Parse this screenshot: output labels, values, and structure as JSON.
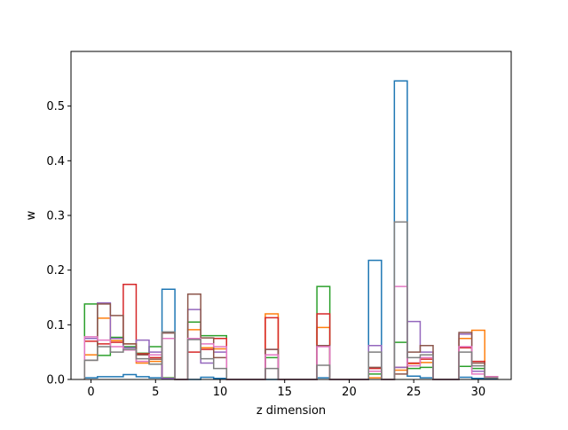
{
  "chart_data": {
    "type": "step-histogram",
    "xlabel": "z dimension",
    "ylabel": "w",
    "xlim": [
      -1.55,
      32.55
    ],
    "ylim": [
      0,
      0.6
    ],
    "xticks": [
      0,
      5,
      10,
      15,
      20,
      25,
      30
    ],
    "xtick_labels": [
      "0",
      "5",
      "10",
      "15",
      "20",
      "25",
      "30"
    ],
    "yticks": [
      0.0,
      0.1,
      0.2,
      0.3,
      0.4,
      0.5
    ],
    "ytick_labels": [
      "0.0",
      "0.1",
      "0.2",
      "0.3",
      "0.4",
      "0.5"
    ],
    "x": [
      0,
      1,
      2,
      3,
      4,
      5,
      6,
      7,
      8,
      9,
      10,
      11,
      12,
      13,
      14,
      15,
      16,
      17,
      18,
      19,
      20,
      21,
      22,
      23,
      24,
      25,
      26,
      27,
      28,
      29,
      30,
      31
    ],
    "series": [
      {
        "color": "#1f77b4",
        "values": [
          0.003,
          0.005,
          0.005,
          0.009,
          0.005,
          0.003,
          0.165,
          0,
          0,
          0.004,
          0.002,
          0,
          0,
          0,
          0,
          0,
          0,
          0,
          0.003,
          0,
          0,
          0,
          0.218,
          0,
          0.546,
          0.006,
          0.003,
          0,
          0,
          0.004,
          0.002,
          0.002
        ]
      },
      {
        "color": "#ff7f0e",
        "values": [
          0.045,
          0.112,
          0.071,
          0.065,
          0.03,
          0.033,
          0.003,
          0,
          0.091,
          0.058,
          0.056,
          0,
          0,
          0,
          0.12,
          0,
          0,
          0,
          0.095,
          0,
          0,
          0,
          0.003,
          0,
          0.017,
          0.029,
          0.031,
          0,
          0,
          0.075,
          0.09,
          0.005
        ]
      },
      {
        "color": "#2ca02c",
        "values": [
          0.138,
          0.044,
          0.077,
          0.06,
          0.048,
          0.06,
          0.003,
          0,
          0.105,
          0.08,
          0.08,
          0,
          0,
          0,
          0.04,
          0,
          0,
          0,
          0.17,
          0,
          0,
          0,
          0.01,
          0,
          0.068,
          0.02,
          0.022,
          0,
          0,
          0.024,
          0.02,
          0.003
        ]
      },
      {
        "color": "#d62728",
        "values": [
          0.07,
          0.065,
          0.068,
          0.174,
          0.047,
          0.04,
          0.002,
          0,
          0.05,
          0.055,
          0.075,
          0,
          0,
          0,
          0.113,
          0,
          0,
          0,
          0.12,
          0,
          0,
          0,
          0.02,
          0,
          0.022,
          0.03,
          0.037,
          0,
          0,
          0.058,
          0.033,
          0.003
        ]
      },
      {
        "color": "#9467bd",
        "values": [
          0.075,
          0.14,
          0.075,
          0.058,
          0.072,
          0.05,
          0.002,
          0,
          0.128,
          0.03,
          0.05,
          0,
          0,
          0,
          0.055,
          0,
          0,
          0,
          0.062,
          0,
          0,
          0,
          0.062,
          0,
          0.022,
          0.106,
          0.05,
          0,
          0,
          0.083,
          0.015,
          0.004
        ]
      },
      {
        "color": "#8c564b",
        "values": [
          0.035,
          0.138,
          0.117,
          0.065,
          0.045,
          0.037,
          0.085,
          0,
          0.156,
          0.076,
          0.04,
          0,
          0,
          0,
          0.055,
          0,
          0,
          0,
          0.062,
          0,
          0,
          0,
          0.022,
          0,
          0.01,
          0.05,
          0.062,
          0,
          0,
          0.086,
          0.03,
          0.005
        ]
      },
      {
        "color": "#e377c2",
        "values": [
          0.078,
          0.072,
          0.06,
          0.054,
          0.033,
          0.045,
          0.075,
          0,
          0.075,
          0.065,
          0.06,
          0,
          0,
          0,
          0.045,
          0,
          0,
          0,
          0.06,
          0,
          0,
          0,
          0.015,
          0,
          0.17,
          0.025,
          0.04,
          0,
          0,
          0.06,
          0.01,
          0.005
        ]
      },
      {
        "color": "#7f7f7f",
        "values": [
          0.035,
          0.06,
          0.05,
          0.055,
          0.038,
          0.028,
          0.087,
          0,
          0.073,
          0.038,
          0.02,
          0,
          0,
          0,
          0.02,
          0,
          0,
          0,
          0.026,
          0,
          0,
          0,
          0.05,
          0,
          0.288,
          0.04,
          0.045,
          0,
          0,
          0.05,
          0.025,
          0.003
        ]
      }
    ],
    "grid": false,
    "legend": "none"
  }
}
